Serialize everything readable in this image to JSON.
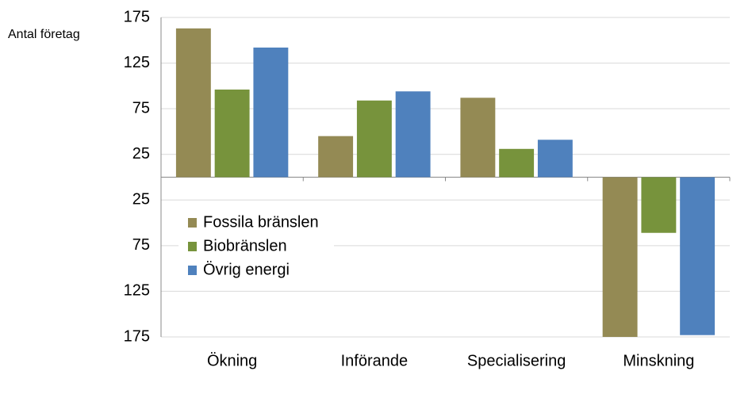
{
  "chart_data": {
    "type": "bar",
    "y_label": "Antal företag",
    "categories": [
      "Ökning",
      "Införande",
      "Specialisering",
      "Minskning"
    ],
    "series": [
      {
        "name": "Fossila bränslen",
        "color": "#948a54",
        "values": [
          163,
          45,
          87,
          -175
        ]
      },
      {
        "name": "Biobränslen",
        "color": "#77933c",
        "values": [
          96,
          84,
          31,
          -61
        ]
      },
      {
        "name": "Övrig energi",
        "color": "#4f81bd",
        "values": [
          142,
          94,
          41,
          -173
        ]
      }
    ],
    "ylim": [
      -175,
      175
    ],
    "yticks": [
      175,
      125,
      75,
      25,
      {
        "value": -25,
        "label": "25"
      },
      {
        "value": -75,
        "label": "75"
      },
      {
        "value": -125,
        "label": "125"
      },
      {
        "value": -175,
        "label": "175"
      }
    ],
    "grid": true
  }
}
